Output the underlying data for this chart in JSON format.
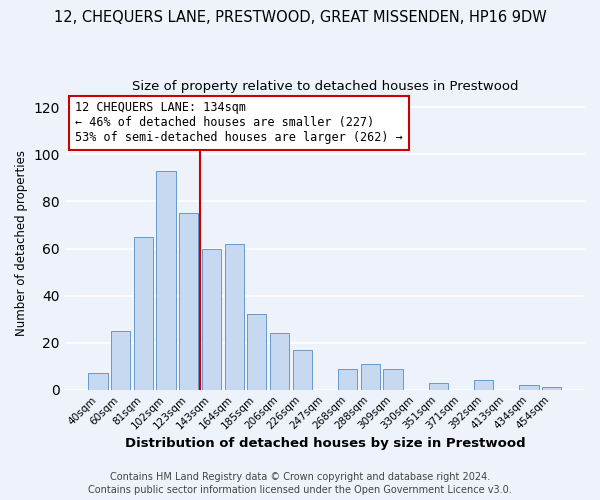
{
  "title": "12, CHEQUERS LANE, PRESTWOOD, GREAT MISSENDEN, HP16 9DW",
  "subtitle": "Size of property relative to detached houses in Prestwood",
  "xlabel": "Distribution of detached houses by size in Prestwood",
  "ylabel": "Number of detached properties",
  "bar_labels": [
    "40sqm",
    "60sqm",
    "81sqm",
    "102sqm",
    "123sqm",
    "143sqm",
    "164sqm",
    "185sqm",
    "206sqm",
    "226sqm",
    "247sqm",
    "268sqm",
    "288sqm",
    "309sqm",
    "330sqm",
    "351sqm",
    "371sqm",
    "392sqm",
    "413sqm",
    "434sqm",
    "454sqm"
  ],
  "bar_values": [
    7,
    25,
    65,
    93,
    75,
    60,
    62,
    32,
    24,
    17,
    0,
    9,
    11,
    9,
    0,
    3,
    0,
    4,
    0,
    2,
    1
  ],
  "bar_color": "#c6d9f0",
  "bar_edge_color": "#6699cc",
  "vline_x_index": 4.5,
  "vline_color": "#cc0000",
  "annotation_text": "12 CHEQUERS LANE: 134sqm\n← 46% of detached houses are smaller (227)\n53% of semi-detached houses are larger (262) →",
  "annotation_box_color": "#ffffff",
  "annotation_box_edge": "#cc0000",
  "annotation_fontsize": 8.5,
  "ylim": [
    0,
    125
  ],
  "yticks": [
    0,
    20,
    40,
    60,
    80,
    100,
    120
  ],
  "footer1": "Contains HM Land Registry data © Crown copyright and database right 2024.",
  "footer2": "Contains public sector information licensed under the Open Government Licence v3.0.",
  "title_fontsize": 10.5,
  "subtitle_fontsize": 9.5,
  "xlabel_fontsize": 9.5,
  "ylabel_fontsize": 8.5,
  "footer_fontsize": 7.0,
  "tick_fontsize": 7.5,
  "background_color": "#eef2fb"
}
